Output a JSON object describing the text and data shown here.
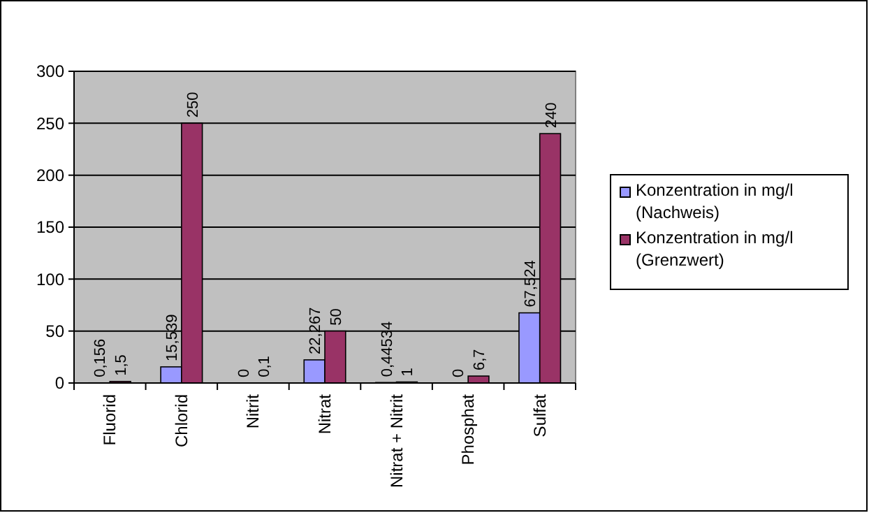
{
  "chart_data": {
    "type": "bar",
    "categories": [
      "Fluorid",
      "Chlorid",
      "Nitrit",
      "Nitrat",
      "Nitrat + Nitrit",
      "Phosphat",
      "Sulfat"
    ],
    "series": [
      {
        "name": "Konzentration in mg/l (Nachweis)",
        "color": "#9999ff",
        "values": [
          0.156,
          15.539,
          0,
          22.267,
          0.44534,
          0,
          67.524
        ],
        "value_labels": [
          "0,156",
          "15,539",
          "0",
          "22,267",
          "0,44534",
          "0",
          "67,524"
        ]
      },
      {
        "name": "Konzentration in mg/l (Grenzwert)",
        "color": "#993366",
        "values": [
          1.5,
          250,
          0.1,
          50,
          1,
          6.7,
          240
        ],
        "value_labels": [
          "1,5",
          "250",
          "0,1",
          "50",
          "1",
          "6,7",
          "240"
        ]
      }
    ],
    "ylim": [
      0,
      300
    ],
    "yticks": [
      0,
      50,
      100,
      150,
      200,
      250,
      300
    ],
    "grid": "y",
    "legend": "right"
  }
}
